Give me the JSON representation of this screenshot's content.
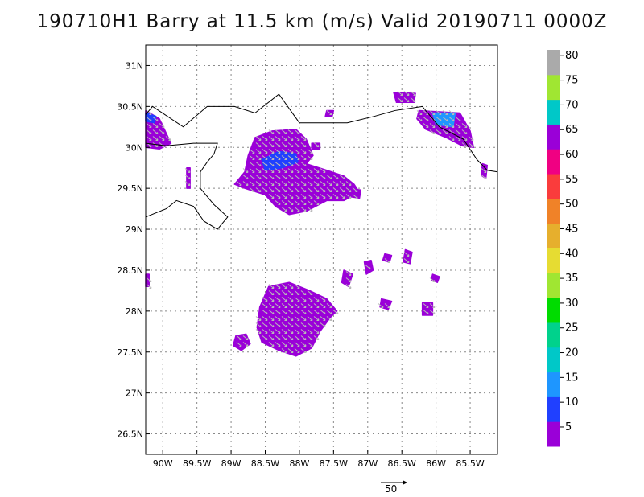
{
  "title": "190710H1 Barry at 11.5 km (m/s) Valid 20190711 0000Z",
  "chart_data": {
    "type": "map",
    "lon_range": [
      -90.25,
      -85.1
    ],
    "lat_range": [
      26.25,
      31.25
    ],
    "x_ticks": [
      {
        "value": -90.0,
        "label": "90W"
      },
      {
        "value": -89.5,
        "label": "89.5W"
      },
      {
        "value": -89.0,
        "label": "89W"
      },
      {
        "value": -88.5,
        "label": "88.5W"
      },
      {
        "value": -88.0,
        "label": "88W"
      },
      {
        "value": -87.5,
        "label": "87.5W"
      },
      {
        "value": -87.0,
        "label": "87W"
      },
      {
        "value": -86.5,
        "label": "86.5W"
      },
      {
        "value": -86.0,
        "label": "86W"
      },
      {
        "value": -85.5,
        "label": "85.5W"
      }
    ],
    "y_ticks": [
      {
        "value": 31.0,
        "label": "31N"
      },
      {
        "value": 30.5,
        "label": "30.5N"
      },
      {
        "value": 30.0,
        "label": "30N"
      },
      {
        "value": 29.5,
        "label": "29.5N"
      },
      {
        "value": 29.0,
        "label": "29N"
      },
      {
        "value": 28.5,
        "label": "28.5N"
      },
      {
        "value": 28.0,
        "label": "28N"
      },
      {
        "value": 27.5,
        "label": "27.5N"
      },
      {
        "value": 27.0,
        "label": "27N"
      },
      {
        "value": 26.5,
        "label": "26.5N"
      }
    ],
    "grid": true,
    "colorbar": {
      "labels": [
        "5",
        "10",
        "15",
        "20",
        "25",
        "30",
        "35",
        "40",
        "45",
        "50",
        "55",
        "60",
        "65",
        "70",
        "75",
        "80"
      ],
      "colors": [
        "#9a00d8",
        "#2040ff",
        "#1e96ff",
        "#00c8c8",
        "#00d28c",
        "#00dc00",
        "#a0e632",
        "#e6dc32",
        "#e6af2d",
        "#f08228",
        "#fa3c3c",
        "#f00082",
        "#9a00d8",
        "#00c8c8",
        "#a0e632",
        "#aaaaaa"
      ]
    },
    "wind_regions": [
      {
        "name": "central-north-blob",
        "color": "#9a00d8",
        "points": [
          [
            -88.65,
            30.12
          ],
          [
            -88.4,
            30.2
          ],
          [
            -88.05,
            30.22
          ],
          [
            -87.9,
            30.1
          ],
          [
            -87.8,
            29.9
          ],
          [
            -87.9,
            29.8
          ],
          [
            -87.6,
            29.72
          ],
          [
            -87.35,
            29.65
          ],
          [
            -87.2,
            29.55
          ],
          [
            -87.12,
            29.45
          ],
          [
            -87.35,
            29.35
          ],
          [
            -87.6,
            29.35
          ],
          [
            -87.9,
            29.22
          ],
          [
            -88.15,
            29.18
          ],
          [
            -88.35,
            29.28
          ],
          [
            -88.5,
            29.42
          ],
          [
            -88.8,
            29.5
          ],
          [
            -88.95,
            29.55
          ],
          [
            -88.8,
            29.7
          ],
          [
            -88.75,
            29.9
          ]
        ]
      },
      {
        "name": "central-north-core",
        "color": "#2040ff",
        "points": [
          [
            -88.55,
            29.85
          ],
          [
            -88.3,
            29.95
          ],
          [
            -88.05,
            29.92
          ],
          [
            -88.02,
            29.82
          ],
          [
            -88.25,
            29.75
          ],
          [
            -88.5,
            29.72
          ]
        ]
      },
      {
        "name": "south-blob",
        "color": "#9a00d8",
        "points": [
          [
            -88.45,
            28.3
          ],
          [
            -88.15,
            28.35
          ],
          [
            -87.85,
            28.25
          ],
          [
            -87.6,
            28.15
          ],
          [
            -87.45,
            28.0
          ],
          [
            -87.55,
            27.92
          ],
          [
            -87.7,
            27.75
          ],
          [
            -87.82,
            27.55
          ],
          [
            -88.05,
            27.45
          ],
          [
            -88.3,
            27.52
          ],
          [
            -88.55,
            27.62
          ],
          [
            -88.62,
            27.8
          ],
          [
            -88.58,
            28.05
          ]
        ]
      },
      {
        "name": "southwest-spot",
        "color": "#9a00d8",
        "points": [
          [
            -88.93,
            27.7
          ],
          [
            -88.78,
            27.72
          ],
          [
            -88.72,
            27.6
          ],
          [
            -88.85,
            27.52
          ],
          [
            -88.97,
            27.58
          ]
        ]
      },
      {
        "name": "northeast-blob",
        "color": "#9a00d8",
        "points": [
          [
            -86.25,
            30.45
          ],
          [
            -85.65,
            30.42
          ],
          [
            -85.5,
            30.2
          ],
          [
            -85.45,
            30.0
          ],
          [
            -85.62,
            30.02
          ],
          [
            -85.85,
            30.12
          ],
          [
            -86.15,
            30.22
          ],
          [
            -86.28,
            30.35
          ]
        ]
      },
      {
        "name": "northeast-core",
        "color": "#1e96ff",
        "points": [
          [
            -86.05,
            30.42
          ],
          [
            -85.72,
            30.42
          ],
          [
            -85.75,
            30.25
          ],
          [
            -86.0,
            30.28
          ]
        ]
      },
      {
        "name": "northeast-top-strip",
        "color": "#9a00d8",
        "points": [
          [
            -86.62,
            30.67
          ],
          [
            -86.3,
            30.66
          ],
          [
            -86.32,
            30.55
          ],
          [
            -86.58,
            30.55
          ]
        ]
      },
      {
        "name": "west-patch",
        "color": "#9a00d8",
        "points": [
          [
            -90.25,
            30.45
          ],
          [
            -90.05,
            30.35
          ],
          [
            -89.88,
            30.05
          ],
          [
            -90.05,
            29.98
          ],
          [
            -90.25,
            30.0
          ]
        ]
      },
      {
        "name": "west-patch-core",
        "color": "#2040ff",
        "points": [
          [
            -90.25,
            30.42
          ],
          [
            -90.1,
            30.38
          ],
          [
            -90.12,
            30.3
          ],
          [
            -90.25,
            30.32
          ]
        ]
      },
      {
        "name": "scatter-1",
        "color": "#9a00d8",
        "points": [
          [
            -87.05,
            28.6
          ],
          [
            -86.95,
            28.62
          ],
          [
            -86.92,
            28.5
          ],
          [
            -87.02,
            28.45
          ]
        ]
      },
      {
        "name": "scatter-2",
        "color": "#9a00d8",
        "points": [
          [
            -86.45,
            28.75
          ],
          [
            -86.35,
            28.72
          ],
          [
            -86.38,
            28.58
          ],
          [
            -86.48,
            28.6
          ]
        ]
      },
      {
        "name": "scatter-3",
        "color": "#9a00d8",
        "points": [
          [
            -86.2,
            28.1
          ],
          [
            -86.05,
            28.1
          ],
          [
            -86.05,
            27.95
          ],
          [
            -86.2,
            27.95
          ]
        ]
      },
      {
        "name": "scatter-4",
        "color": "#9a00d8",
        "points": [
          [
            -86.8,
            28.15
          ],
          [
            -86.65,
            28.12
          ],
          [
            -86.7,
            28.02
          ],
          [
            -86.82,
            28.05
          ]
        ]
      },
      {
        "name": "scatter-5",
        "color": "#9a00d8",
        "points": [
          [
            -87.35,
            28.5
          ],
          [
            -87.22,
            28.45
          ],
          [
            -87.28,
            28.3
          ],
          [
            -87.38,
            28.35
          ]
        ]
      },
      {
        "name": "scatter-6",
        "color": "#9a00d8",
        "points": [
          [
            -86.75,
            28.7
          ],
          [
            -86.65,
            28.68
          ],
          [
            -86.68,
            28.6
          ],
          [
            -86.78,
            28.62
          ]
        ]
      },
      {
        "name": "scatter-7",
        "color": "#9a00d8",
        "points": [
          [
            -87.6,
            30.45
          ],
          [
            -87.5,
            30.45
          ],
          [
            -87.52,
            30.38
          ],
          [
            -87.62,
            30.38
          ]
        ]
      },
      {
        "name": "scatter-8",
        "color": "#9a00d8",
        "points": [
          [
            -87.82,
            30.05
          ],
          [
            -87.7,
            30.05
          ],
          [
            -87.7,
            29.98
          ],
          [
            -87.82,
            29.98
          ]
        ]
      },
      {
        "name": "scatter-9",
        "color": "#9a00d8",
        "points": [
          [
            -85.32,
            29.8
          ],
          [
            -85.25,
            29.78
          ],
          [
            -85.27,
            29.62
          ],
          [
            -85.34,
            29.66
          ]
        ]
      },
      {
        "name": "scatter-10",
        "color": "#9a00d8",
        "points": [
          [
            -89.65,
            29.75
          ],
          [
            -89.6,
            29.75
          ],
          [
            -89.6,
            29.5
          ],
          [
            -89.65,
            29.5
          ]
        ]
      },
      {
        "name": "scatter-11",
        "color": "#9a00d8",
        "points": [
          [
            -90.25,
            28.45
          ],
          [
            -90.2,
            28.45
          ],
          [
            -90.2,
            28.3
          ],
          [
            -90.25,
            28.3
          ]
        ]
      },
      {
        "name": "scatter-12",
        "color": "#9a00d8",
        "points": [
          [
            -87.3,
            29.5
          ],
          [
            -87.1,
            29.48
          ],
          [
            -87.12,
            29.38
          ],
          [
            -87.28,
            29.4
          ]
        ]
      },
      {
        "name": "scatter-13",
        "color": "#9a00d8",
        "points": [
          [
            -86.05,
            28.45
          ],
          [
            -85.95,
            28.42
          ],
          [
            -85.98,
            28.35
          ],
          [
            -86.07,
            28.38
          ]
        ]
      }
    ],
    "coastline": [
      [
        [
          -90.25,
          29.15
        ],
        [
          -89.95,
          29.25
        ],
        [
          -89.8,
          29.35
        ],
        [
          -89.55,
          29.28
        ],
        [
          -89.4,
          29.1
        ],
        [
          -89.2,
          29.0
        ],
        [
          -89.05,
          29.15
        ],
        [
          -89.25,
          29.3
        ],
        [
          -89.45,
          29.5
        ],
        [
          -89.45,
          29.7
        ],
        [
          -89.35,
          29.82
        ],
        [
          -89.25,
          29.92
        ],
        [
          -89.2,
          30.05
        ],
        [
          -89.55,
          30.05
        ],
        [
          -89.95,
          30.02
        ],
        [
          -90.25,
          30.05
        ]
      ],
      [
        [
          -90.25,
          30.4
        ],
        [
          -90.15,
          30.5
        ],
        [
          -89.7,
          30.25
        ],
        [
          -89.35,
          30.5
        ],
        [
          -88.95,
          30.5
        ],
        [
          -88.65,
          30.42
        ],
        [
          -88.3,
          30.65
        ],
        [
          -88.0,
          30.3
        ],
        [
          -87.7,
          30.3
        ],
        [
          -87.3,
          30.3
        ],
        [
          -86.9,
          30.38
        ],
        [
          -86.6,
          30.45
        ],
        [
          -86.2,
          30.5
        ],
        [
          -85.95,
          30.25
        ],
        [
          -85.6,
          30.1
        ],
        [
          -85.4,
          29.85
        ],
        [
          -85.25,
          29.72
        ],
        [
          -85.1,
          29.7
        ]
      ]
    ],
    "reference_vector": {
      "value": 50,
      "label": "50"
    }
  }
}
